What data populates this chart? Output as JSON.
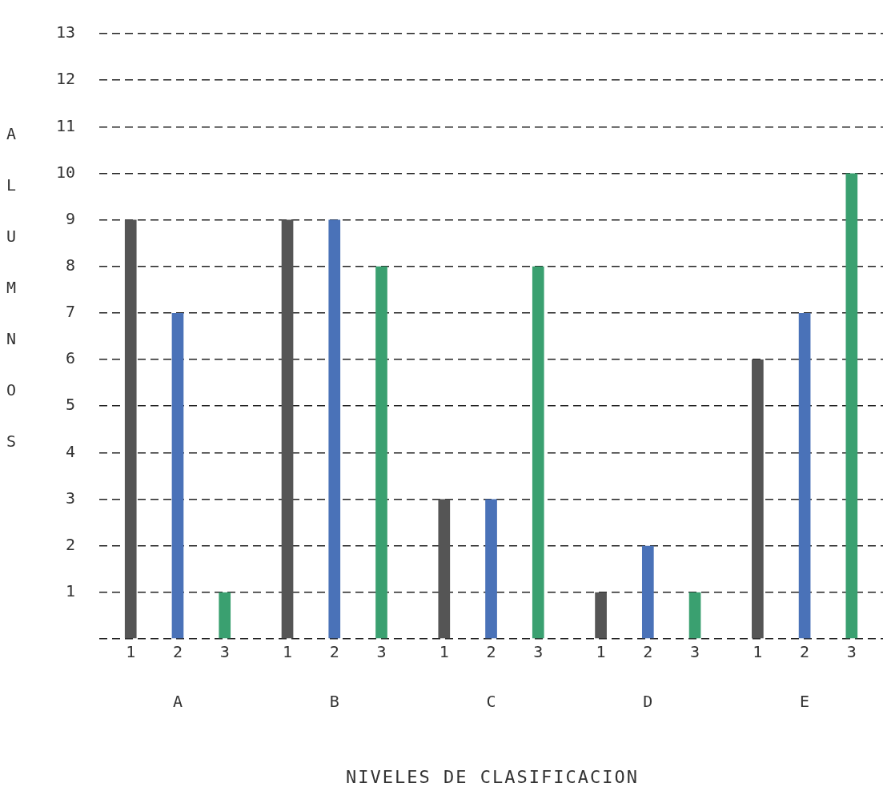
{
  "chart_data": {
    "type": "bar",
    "xlabel": "NIVELES  DE  CLASIFICACION",
    "ylabel": "ALUMNOS",
    "categories": [
      "A",
      "B",
      "C",
      "D",
      "E"
    ],
    "series": [
      {
        "name": "1",
        "color": "#555555",
        "values": [
          9,
          9,
          3,
          1,
          6
        ]
      },
      {
        "name": "2",
        "color": "#4a72b8",
        "values": [
          7,
          9,
          3,
          2,
          7
        ]
      },
      {
        "name": "3",
        "color": "#3aa070",
        "values": [
          1,
          8,
          8,
          1,
          10
        ]
      }
    ],
    "ylim": [
      0,
      13
    ],
    "yticks": [
      {
        "value": 0,
        "label": null
      },
      1,
      2,
      3,
      4,
      5,
      6,
      7,
      8,
      9,
      10,
      11,
      12,
      13
    ],
    "grid": "y",
    "legend": false
  }
}
